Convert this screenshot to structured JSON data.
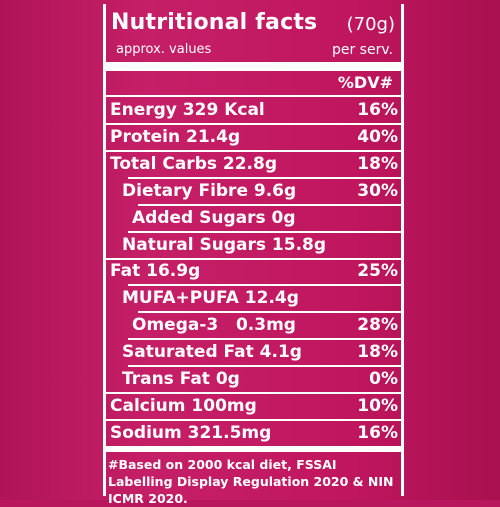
{
  "header": {
    "title": "Nutritional facts",
    "serving": "(70g)",
    "subtitle_left": "approx. values",
    "subtitle_right": "per serv.",
    "dv_column_label": "%DV#"
  },
  "rows": [
    {
      "label": "Energy 329 Kcal",
      "dv": "16%",
      "indent": 0
    },
    {
      "label": "Protein 21.4g",
      "dv": "40%",
      "indent": 0
    },
    {
      "label": "Total Carbs 22.8g",
      "dv": "18%",
      "indent": 0
    },
    {
      "label": "Dietary Fibre 9.6g",
      "dv": "30%",
      "indent": 1
    },
    {
      "label": "Added Sugars 0g",
      "dv": "",
      "indent": 2
    },
    {
      "label": "Natural Sugars 15.8g",
      "dv": "",
      "indent": 1
    },
    {
      "label": "Fat 16.9g",
      "dv": "25%",
      "indent": 0
    },
    {
      "label": "MUFA+PUFA 12.4g",
      "dv": "",
      "indent": 1
    },
    {
      "label": "Omega-3   0.3mg",
      "dv": "28%",
      "indent": 2
    },
    {
      "label": "Saturated Fat 4.1g",
      "dv": "18%",
      "indent": 1
    },
    {
      "label": "Trans Fat 0g",
      "dv": "0%",
      "indent": 1
    },
    {
      "label": "Calcium 100mg",
      "dv": "10%",
      "indent": 0
    },
    {
      "label": "Sodium 321.5mg",
      "dv": "16%",
      "indent": 0
    }
  ],
  "footnote": "#Based on 2000 kcal diet, FSSAI Labelling Display Regulation 2020 & NIN ICMR 2020."
}
